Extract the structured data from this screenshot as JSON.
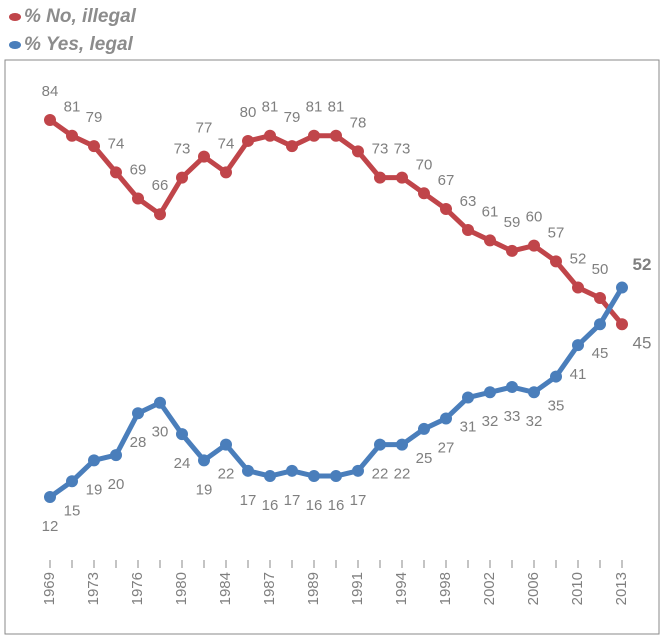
{
  "chart_data": {
    "type": "line",
    "categories": [
      "1969",
      null,
      "1973",
      null,
      "1976",
      null,
      "1980",
      null,
      "1984",
      null,
      "1987",
      null,
      "1989",
      null,
      "1991",
      null,
      "1994",
      null,
      "1998",
      null,
      "2002",
      null,
      "2006",
      null,
      "2010",
      null,
      "2013"
    ],
    "series": [
      {
        "name": "% No, illegal",
        "color": "#c0454a",
        "values": [
          84,
          81,
          79,
          74,
          69,
          66,
          73,
          77,
          74,
          80,
          81,
          79,
          81,
          81,
          78,
          73,
          73,
          70,
          67,
          63,
          61,
          59,
          60,
          57,
          52,
          50,
          45
        ]
      },
      {
        "name": "% Yes, legal",
        "color": "#4a7ebb",
        "values": [
          12,
          15,
          19,
          20,
          28,
          30,
          24,
          19,
          22,
          17,
          16,
          17,
          16,
          16,
          17,
          22,
          22,
          25,
          27,
          31,
          32,
          33,
          32,
          35,
          41,
          45,
          52
        ]
      }
    ],
    "legend": "top-left"
  }
}
